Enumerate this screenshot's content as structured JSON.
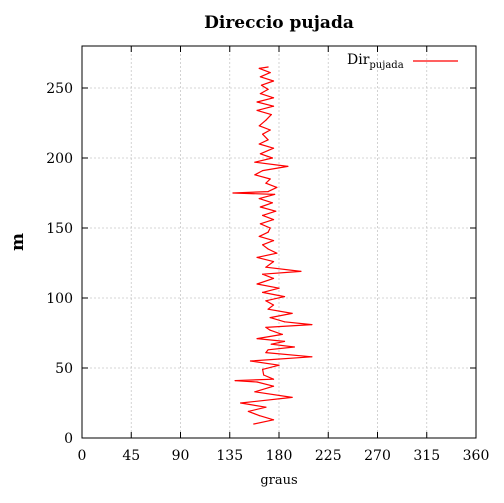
{
  "chart_data": {
    "type": "line",
    "title": "Direccio pujada",
    "xlabel": "graus",
    "ylabel": "m",
    "xlim": [
      0,
      360
    ],
    "ylim": [
      0,
      280
    ],
    "xticks": [
      0,
      45,
      90,
      135,
      180,
      225,
      270,
      315,
      360
    ],
    "yticks": [
      0,
      50,
      100,
      150,
      200,
      250
    ],
    "grid": true,
    "legend_position": "top-right",
    "series": [
      {
        "name_base": "Dir",
        "name_sub": "pujada",
        "color": "#ff0000",
        "points": [
          [
            157,
            10
          ],
          [
            175,
            13
          ],
          [
            162,
            16
          ],
          [
            152,
            19
          ],
          [
            168,
            22
          ],
          [
            145,
            25
          ],
          [
            192,
            29
          ],
          [
            158,
            33
          ],
          [
            175,
            37
          ],
          [
            160,
            40
          ],
          [
            140,
            41
          ],
          [
            175,
            42
          ],
          [
            166,
            45
          ],
          [
            165,
            49
          ],
          [
            180,
            52
          ],
          [
            154,
            55
          ],
          [
            210,
            58
          ],
          [
            168,
            61
          ],
          [
            170,
            63
          ],
          [
            194,
            65
          ],
          [
            173,
            67
          ],
          [
            185,
            69
          ],
          [
            160,
            71
          ],
          [
            183,
            74
          ],
          [
            172,
            77
          ],
          [
            168,
            79
          ],
          [
            210,
            81
          ],
          [
            185,
            83
          ],
          [
            172,
            86
          ],
          [
            192,
            89
          ],
          [
            170,
            92
          ],
          [
            175,
            95
          ],
          [
            168,
            98
          ],
          [
            185,
            101
          ],
          [
            165,
            104
          ],
          [
            180,
            107
          ],
          [
            160,
            110
          ],
          [
            175,
            114
          ],
          [
            165,
            117
          ],
          [
            200,
            119
          ],
          [
            168,
            122
          ],
          [
            175,
            126
          ],
          [
            160,
            129
          ],
          [
            178,
            132
          ],
          [
            170,
            135
          ],
          [
            165,
            138
          ],
          [
            175,
            141
          ],
          [
            162,
            144
          ],
          [
            170,
            147
          ],
          [
            172,
            150
          ],
          [
            163,
            153
          ],
          [
            175,
            156
          ],
          [
            165,
            159
          ],
          [
            177,
            162
          ],
          [
            163,
            165
          ],
          [
            174,
            168
          ],
          [
            162,
            171
          ],
          [
            176,
            174
          ],
          [
            138,
            175
          ],
          [
            170,
            176
          ],
          [
            178,
            179
          ],
          [
            168,
            182
          ],
          [
            172,
            185
          ],
          [
            158,
            188
          ],
          [
            165,
            191
          ],
          [
            188,
            194
          ],
          [
            158,
            197
          ],
          [
            174,
            200
          ],
          [
            163,
            203
          ],
          [
            175,
            207
          ],
          [
            162,
            210
          ],
          [
            170,
            213
          ],
          [
            165,
            217
          ],
          [
            172,
            220
          ],
          [
            162,
            223
          ],
          [
            168,
            227
          ],
          [
            173,
            231
          ],
          [
            160,
            234
          ],
          [
            175,
            237
          ],
          [
            160,
            240
          ],
          [
            175,
            243
          ],
          [
            163,
            246
          ],
          [
            170,
            249
          ],
          [
            164,
            252
          ],
          [
            175,
            255
          ],
          [
            163,
            258
          ],
          [
            172,
            261
          ],
          [
            162,
            264
          ],
          [
            170,
            265
          ]
        ]
      }
    ]
  }
}
